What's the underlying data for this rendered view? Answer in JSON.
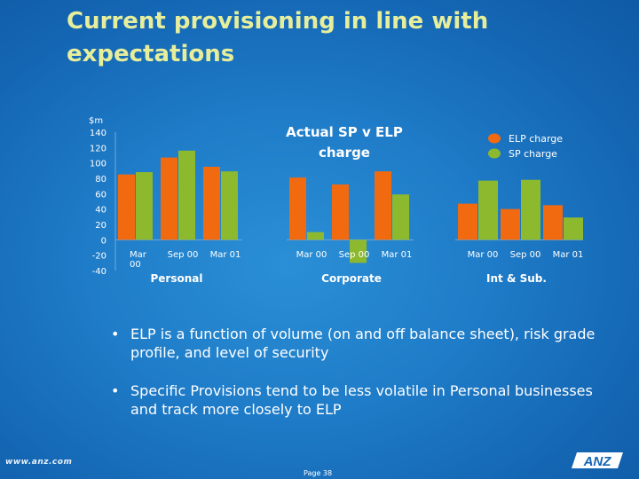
{
  "slide": {
    "title": "Current provisioning in line with expectations",
    "bullets": [
      "ELP is a function of volume (on and off balance sheet), risk grade profile, and level of security",
      "Specific Provisions tend to be less volatile in Personal businesses and track more closely to ELP"
    ],
    "website": "www.anz.com",
    "page_label": "Page 38",
    "logo_text": "ANZ"
  },
  "chart_data": {
    "type": "bar",
    "title": "Actual SP v ELP charge",
    "ylabel": "$m",
    "ylim": [
      -40,
      140
    ],
    "yticks": [
      140,
      120,
      100,
      80,
      60,
      40,
      20,
      0,
      -20,
      -40
    ],
    "legend": {
      "placement": "top-right",
      "entries": [
        "ELP charge",
        "SP charge"
      ]
    },
    "colors": {
      "ELP charge": "#f26a10",
      "SP charge": "#8db92e"
    },
    "grid": false,
    "groups": [
      {
        "name": "Personal",
        "categories": [
          "Mar 00",
          "Sep 00",
          "Mar 01"
        ],
        "series": [
          {
            "name": "ELP charge",
            "values": [
              85,
              107,
              95
            ]
          },
          {
            "name": "SP charge",
            "values": [
              88,
              116,
              89
            ]
          }
        ]
      },
      {
        "name": "Corporate",
        "categories": [
          "Mar 00",
          "Sep 00",
          "Mar 01"
        ],
        "series": [
          {
            "name": "ELP charge",
            "values": [
              81,
              72,
              89
            ]
          },
          {
            "name": "SP charge",
            "values": [
              10,
              -30,
              59
            ]
          }
        ]
      },
      {
        "name": "Int & Sub.",
        "categories": [
          "Mar 00",
          "Sep 00",
          "Mar 01"
        ],
        "series": [
          {
            "name": "ELP charge",
            "values": [
              47,
              40,
              45
            ]
          },
          {
            "name": "SP charge",
            "values": [
              77,
              78,
              29
            ]
          }
        ]
      }
    ]
  }
}
